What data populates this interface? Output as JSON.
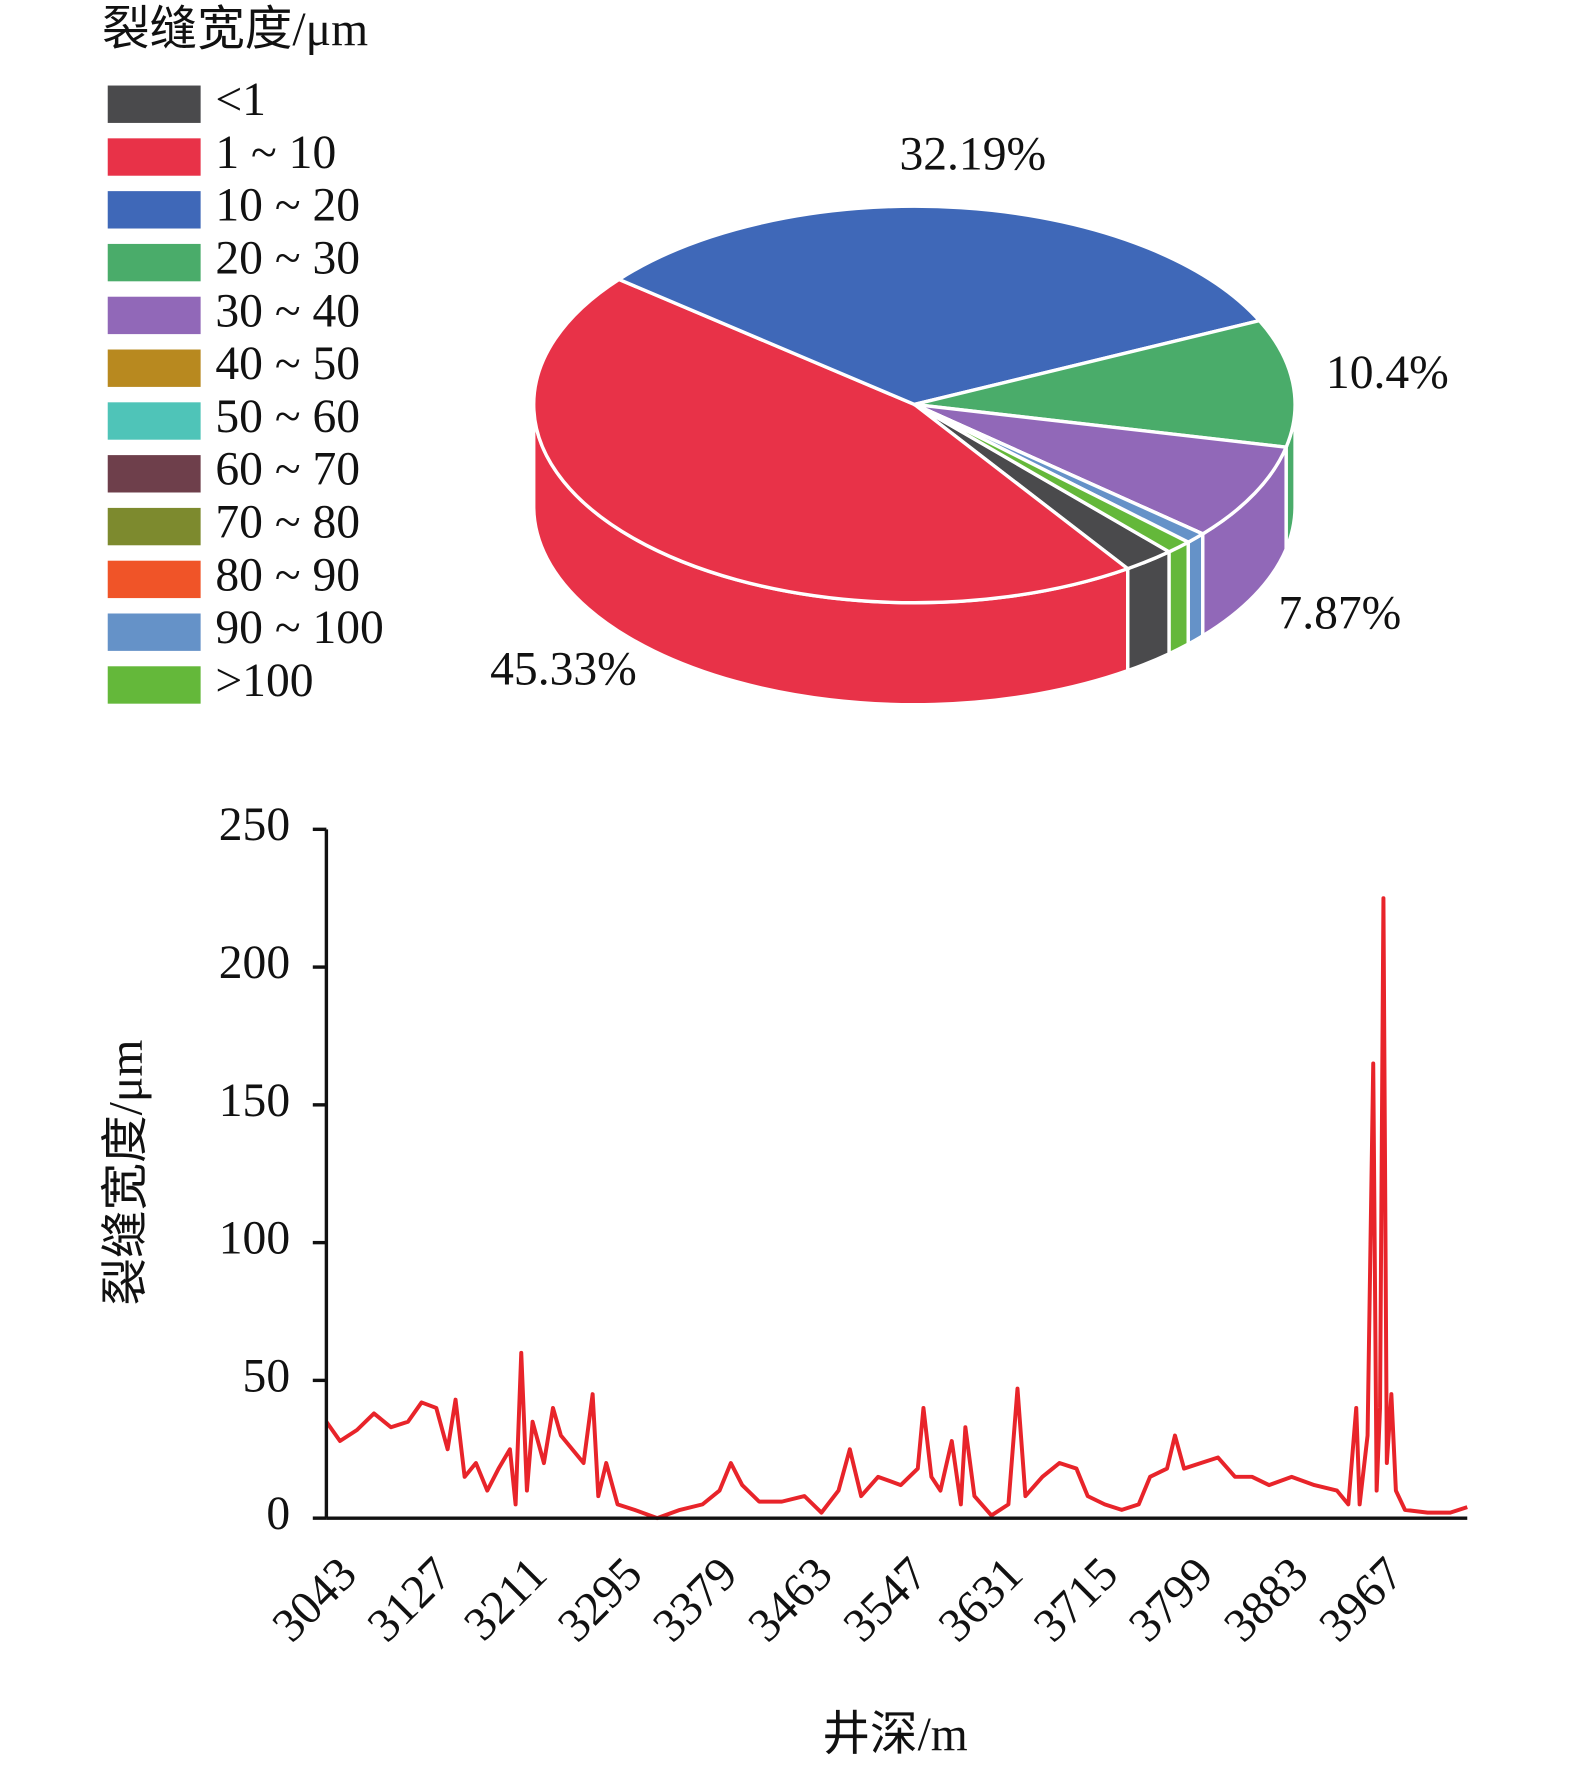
{
  "chart_data": [
    {
      "type": "pie",
      "legend_title": "裂缝宽度/μm",
      "categories": [
        "<1",
        "1 ~ 10",
        "10 ~ 20",
        "20 ~ 30",
        "30 ~ 40",
        "40 ~ 50",
        "50 ~ 60",
        "60 ~ 70",
        "70 ~ 80",
        "80 ~ 90",
        "90 ~ 100",
        ">100"
      ],
      "values": [
        2.2,
        45.33,
        32.19,
        10.4,
        7.87,
        0,
        0,
        0,
        0,
        0,
        0.9,
        1.11
      ],
      "value_labels": [
        null,
        "45.33%",
        "32.19%",
        "10.4%",
        "7.87%",
        null,
        null,
        null,
        null,
        null,
        null,
        null
      ],
      "colors": [
        "#4a4a4c",
        "#e83248",
        "#3f68b8",
        "#4aac6a",
        "#9168b8",
        "#b8891f",
        "#4fc4b8",
        "#6e3f4b",
        "#7d8a2e",
        "#f05428",
        "#6592c8",
        "#64b83a"
      ]
    },
    {
      "type": "line",
      "xlabel": "井深/m",
      "ylabel": "裂缝宽度/μm",
      "color": "#e8242a",
      "x": [
        3043,
        3055,
        3070,
        3085,
        3100,
        3115,
        3127,
        3140,
        3150,
        3157,
        3165,
        3175,
        3185,
        3195,
        3205,
        3210,
        3215,
        3220,
        3225,
        3235,
        3243,
        3250,
        3260,
        3270,
        3278,
        3283,
        3290,
        3300,
        3315,
        3335,
        3355,
        3375,
        3390,
        3400,
        3410,
        3425,
        3445,
        3465,
        3480,
        3495,
        3505,
        3515,
        3530,
        3550,
        3565,
        3570,
        3577,
        3585,
        3595,
        3603,
        3607,
        3615,
        3630,
        3645,
        3653,
        3660,
        3675,
        3690,
        3705,
        3715,
        3730,
        3745,
        3760,
        3770,
        3785,
        3792,
        3800,
        3815,
        3830,
        3845,
        3860,
        3875,
        3895,
        3915,
        3935,
        3945,
        3952,
        3955,
        3962,
        3967,
        3970,
        3973,
        3976,
        3979,
        3983,
        3987,
        3995,
        4015,
        4035,
        4050
      ],
      "values": [
        35,
        28,
        32,
        38,
        33,
        35,
        42,
        40,
        25,
        43,
        15,
        20,
        10,
        18,
        25,
        5,
        60,
        10,
        35,
        20,
        40,
        30,
        25,
        20,
        45,
        8,
        20,
        5,
        3,
        0,
        3,
        5,
        10,
        20,
        12,
        6,
        6,
        8,
        2,
        10,
        25,
        8,
        15,
        12,
        18,
        40,
        15,
        10,
        28,
        5,
        33,
        8,
        1,
        5,
        47,
        8,
        15,
        20,
        18,
        8,
        5,
        3,
        5,
        15,
        18,
        30,
        18,
        20,
        22,
        15,
        15,
        12,
        15,
        12,
        10,
        5,
        40,
        5,
        30,
        165,
        10,
        40,
        225,
        20,
        45,
        10,
        3,
        2,
        2,
        4
      ],
      "xlim": [
        3043,
        4050
      ],
      "xticks": [
        3043,
        3127,
        3211,
        3295,
        3379,
        3463,
        3547,
        3631,
        3715,
        3799,
        3883,
        3967
      ],
      "ylim": [
        0,
        250
      ],
      "yticks": [
        0,
        50,
        100,
        150,
        200,
        250
      ]
    }
  ]
}
